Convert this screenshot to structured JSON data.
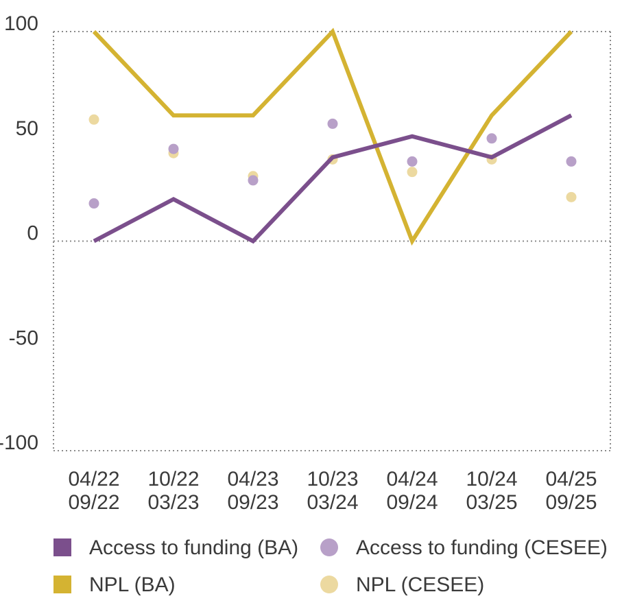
{
  "chart_data": {
    "type": "line",
    "title": "",
    "xlabel": "",
    "ylabel": "",
    "ylim": [
      -100,
      100
    ],
    "yticks": [
      100,
      50,
      0,
      -50,
      -100
    ],
    "grid": "dotted lines at 100, 0 and -100, dotted frame",
    "categories": [
      [
        "04/22",
        "09/22"
      ],
      [
        "10/22",
        "03/23"
      ],
      [
        "04/23",
        "09/23"
      ],
      [
        "10/23",
        "03/24"
      ],
      [
        "04/24",
        "09/24"
      ],
      [
        "10/24",
        "03/25"
      ],
      [
        "04/25",
        "09/25"
      ]
    ],
    "series": [
      {
        "name": "Access to funding (BA)",
        "kind": "line",
        "color": "#7b4f8c",
        "values": [
          0,
          20,
          0,
          40,
          50,
          40,
          60
        ]
      },
      {
        "name": "NPL (BA)",
        "kind": "line",
        "color": "#d4b332",
        "values": [
          100,
          60,
          60,
          100,
          0,
          60,
          100
        ]
      },
      {
        "name": "Access to funding (CESEE)",
        "kind": "dot",
        "color": "#b8a0c8",
        "values": [
          18,
          44,
          29,
          56,
          38,
          49,
          38
        ]
      },
      {
        "name": "NPL (CESEE)",
        "kind": "dot",
        "color": "#ecd9a0",
        "values": [
          58,
          42,
          31,
          39,
          33,
          39,
          21
        ]
      }
    ],
    "legend": {
      "placement": "bottom",
      "columns": [
        [
          "Access to funding (BA)",
          "NPL (BA)"
        ],
        [
          "Access to funding (CESEE)",
          "NPL (CESEE)"
        ]
      ]
    }
  }
}
